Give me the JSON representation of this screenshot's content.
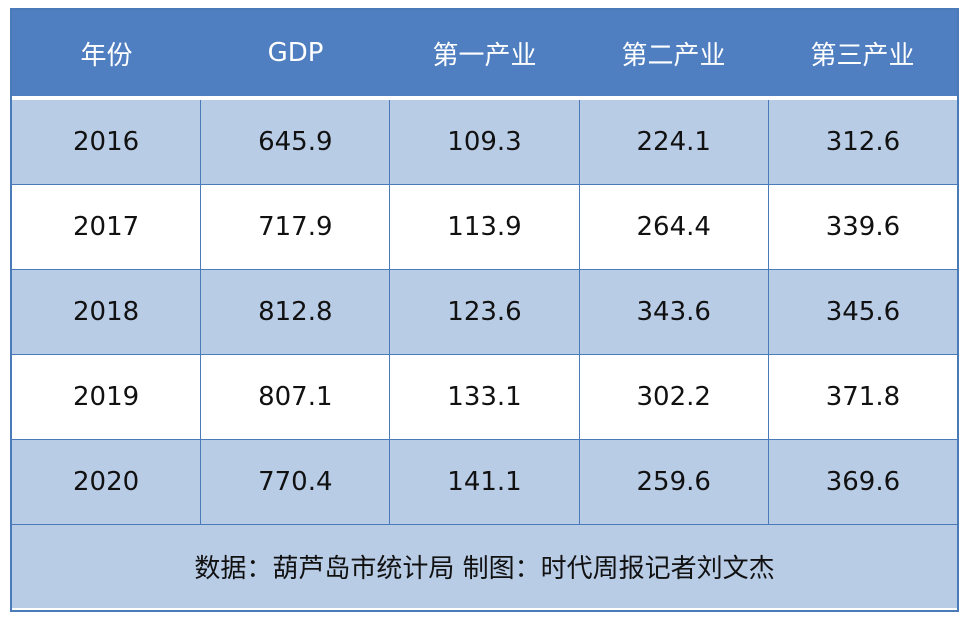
{
  "chart_data": {
    "type": "table",
    "columns": [
      "年份",
      "GDP",
      "第一产业",
      "第二产业",
      "第三产业"
    ],
    "rows": [
      [
        "2016",
        "645.9",
        "109.3",
        "224.1",
        "312.6"
      ],
      [
        "2017",
        "717.9",
        "113.9",
        "264.4",
        "339.6"
      ],
      [
        "2018",
        "812.8",
        "123.6",
        "343.6",
        "345.6"
      ],
      [
        "2019",
        "807.1",
        "133.1",
        "302.2",
        "371.8"
      ],
      [
        "2020",
        "770.4",
        "141.1",
        "259.6",
        "369.6"
      ]
    ],
    "footer": "数据：葫芦岛市统计局  制图：时代周报记者刘文杰"
  },
  "colors": {
    "header_bg": "#4f7fc0",
    "shaded_row_bg": "#b9cce6",
    "border": "#4a7ab8"
  }
}
